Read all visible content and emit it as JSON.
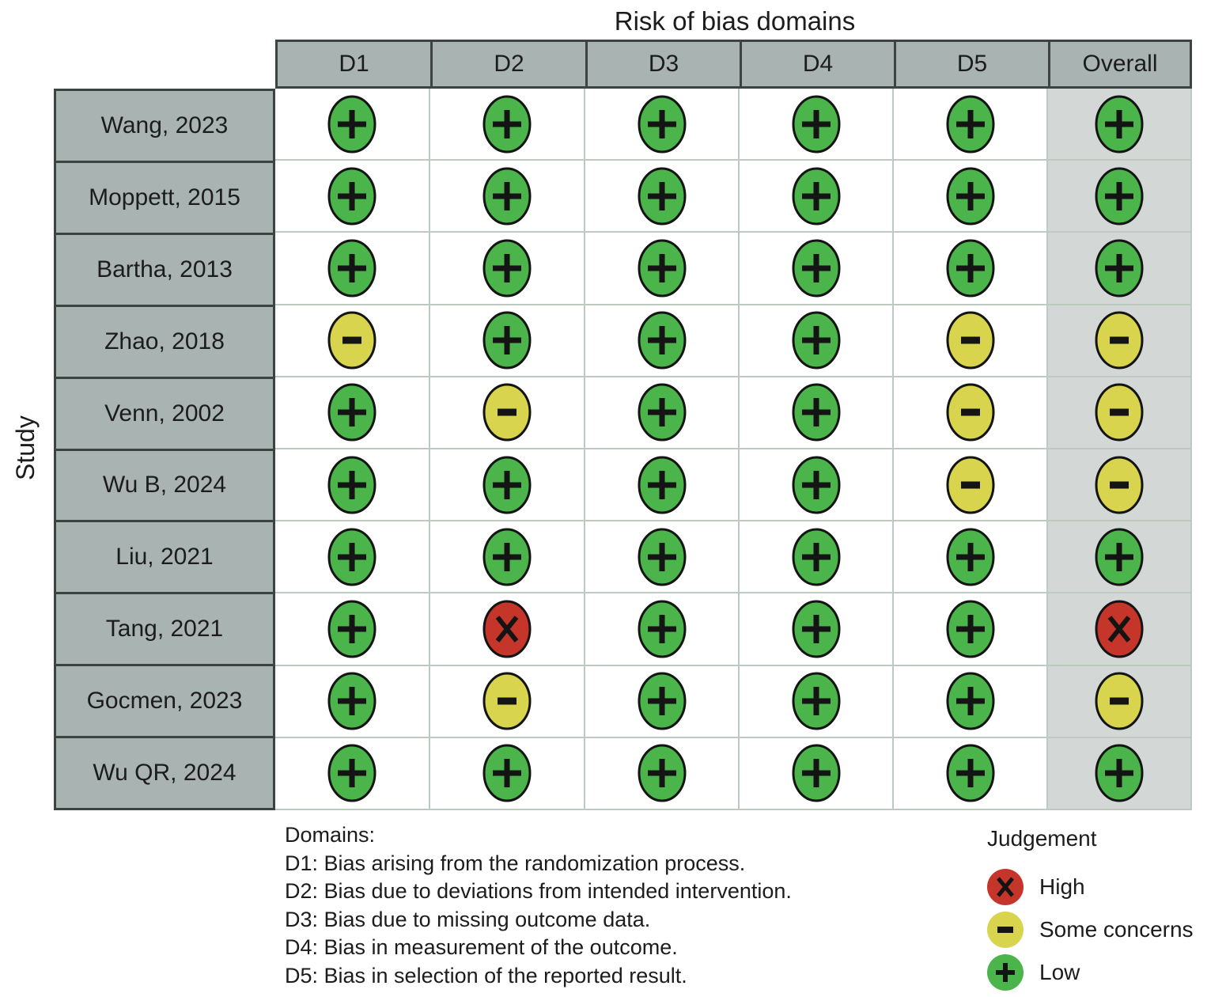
{
  "chart_data": {
    "type": "table",
    "title": "Risk of bias domains",
    "ylabel": "Study",
    "columns": [
      "D1",
      "D2",
      "D3",
      "D4",
      "D5",
      "Overall"
    ],
    "rows": [
      {
        "study": "Wang, 2023",
        "judgements": [
          "low",
          "low",
          "low",
          "low",
          "low",
          "low"
        ]
      },
      {
        "study": "Moppett, 2015",
        "judgements": [
          "low",
          "low",
          "low",
          "low",
          "low",
          "low"
        ]
      },
      {
        "study": "Bartha, 2013",
        "judgements": [
          "low",
          "low",
          "low",
          "low",
          "low",
          "low"
        ]
      },
      {
        "study": "Zhao, 2018",
        "judgements": [
          "some_concerns",
          "low",
          "low",
          "low",
          "some_concerns",
          "some_concerns"
        ]
      },
      {
        "study": "Venn, 2002",
        "judgements": [
          "low",
          "some_concerns",
          "low",
          "low",
          "some_concerns",
          "some_concerns"
        ]
      },
      {
        "study": "Wu B, 2024",
        "judgements": [
          "low",
          "low",
          "low",
          "low",
          "some_concerns",
          "some_concerns"
        ]
      },
      {
        "study": "Liu, 2021",
        "judgements": [
          "low",
          "low",
          "low",
          "low",
          "low",
          "low"
        ]
      },
      {
        "study": "Tang, 2021",
        "judgements": [
          "low",
          "high",
          "low",
          "low",
          "low",
          "high"
        ]
      },
      {
        "study": "Gocmen, 2023",
        "judgements": [
          "low",
          "some_concerns",
          "low",
          "low",
          "low",
          "some_concerns"
        ]
      },
      {
        "study": "Wu QR, 2024",
        "judgements": [
          "low",
          "low",
          "low",
          "low",
          "low",
          "low"
        ]
      }
    ],
    "domains_note": {
      "heading": "Domains:",
      "lines": [
        "D1: Bias arising from the randomization process.",
        "D2: Bias due to deviations from intended intervention.",
        "D3: Bias due to missing outcome data.",
        "D4: Bias in measurement of the outcome.",
        "D5: Bias in selection of the reported result."
      ]
    },
    "legend": {
      "title": "Judgement",
      "items": [
        {
          "judgement": "high",
          "symbol": "X",
          "label": "High"
        },
        {
          "judgement": "some_concerns",
          "symbol": "-",
          "label": "Some concerns"
        },
        {
          "judgement": "low",
          "symbol": "+",
          "label": "Low"
        }
      ]
    },
    "colors": {
      "high": "#c5352a",
      "some_concerns": "#d8d44e",
      "low": "#4bb44a",
      "header_fill": "#a9b3b1",
      "overall_fill": "#d3d8d6",
      "grid_line": "#bdcabf",
      "dark_border": "#3c4341",
      "symbol": "#141414"
    }
  }
}
